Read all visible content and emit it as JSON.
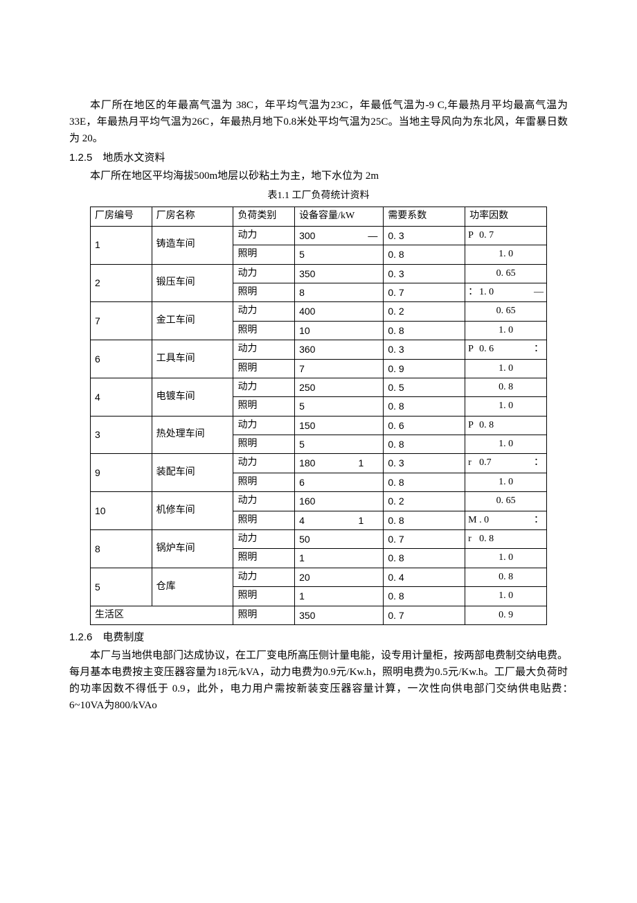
{
  "intro": {
    "p1": "本厂所在地区的年最高气温为 38C，年平均气温为23C，年最低气温为-9 C,年最热月平均最高气温为33E，年最热月平均气温为26C，年最热月地下0.8米处平均气温为25C。当地主导风向为东北风，年雷暴日数为 20。"
  },
  "sec125": {
    "num": "1.2.5",
    "title": "地质水文资料",
    "body": "本厂所在地区平均海拔500m地层以砂粘土为主，地下水位为 2m"
  },
  "table": {
    "title": "表1.1 工厂负荷统计资料",
    "headers": {
      "no": "厂房编号",
      "name": "厂房名称",
      "type": "负荷类别",
      "cap": "设备容量/kW",
      "coef": "需要系数",
      "pf": "功率因数"
    },
    "type_power": "动力",
    "type_light": "照明",
    "groups": [
      {
        "no": "1",
        "name": "铸造车间",
        "p_cap": "300",
        "p_cap_dash": "—",
        "p_coef": "0. 3",
        "p_pf": "0. 7",
        "p_pf_prefix": "P",
        "l_cap": "5",
        "l_coef": "0. 8",
        "l_pf": "1. 0"
      },
      {
        "no": "2",
        "name": "锻压车间",
        "p_cap": "350",
        "p_coef": "0. 3",
        "p_pf": "0. 65",
        "l_cap": "8",
        "l_coef": "0. 7",
        "l_pf": "1. 0",
        "l_pf_prefix": "：",
        "l_pf_suffix": "—"
      },
      {
        "no": "7",
        "name": "金工车间",
        "p_cap": "400",
        "p_coef": "0. 2",
        "p_pf": "0. 65",
        "l_cap": "10",
        "l_coef": "0. 8",
        "l_pf": "1. 0"
      },
      {
        "no": "6",
        "name": "工具车间",
        "p_cap": "360",
        "p_coef": "0. 3",
        "p_pf": "0. 6",
        "p_pf_prefix": "P",
        "p_pf_suffix": "：",
        "l_cap": "7",
        "l_coef": "0. 9",
        "l_pf": "1. 0"
      },
      {
        "no": "4",
        "name": "电镀车间",
        "p_cap": "250",
        "p_coef": "0. 5",
        "p_pf": "0. 8",
        "l_cap": "5",
        "l_coef": "0. 8",
        "l_pf": "1. 0"
      },
      {
        "no": "3",
        "name": "热处理车间",
        "p_cap": "150",
        "p_coef": "0. 6",
        "p_pf": "0. 8",
        "p_pf_prefix": "P",
        "l_cap": "5",
        "l_coef": "0. 8",
        "l_pf": "1. 0"
      },
      {
        "no": "9",
        "name": "装配车间",
        "p_cap": "180",
        "p_cap_bar": "1",
        "p_coef": "0. 3",
        "p_pf": "0.7",
        "p_pf_prefix": "r",
        "p_pf_suffix": "：",
        "l_cap": "6",
        "l_coef": "0. 8",
        "l_pf": "1. 0"
      },
      {
        "no": "10",
        "name": "机修车间",
        "p_cap": "160",
        "p_coef": "0. 2",
        "p_pf": "0. 65",
        "l_cap": "4",
        "l_cap_bar": "1",
        "l_coef": "0. 8",
        "l_pf": ". 0",
        "l_pf_prefix": "M",
        "l_pf_suffix": "："
      },
      {
        "no": "8",
        "name": "锅炉车间",
        "p_cap": "50",
        "p_coef": "0. 7",
        "p_pf": "0. 8",
        "p_pf_prefix": "r",
        "l_cap": "1",
        "l_coef": "0. 8",
        "l_pf": "1. 0"
      },
      {
        "no": "5",
        "name": "仓库",
        "p_cap": "20",
        "p_coef": "0. 4",
        "p_pf": "0. 8",
        "l_cap": "1",
        "l_coef": "0. 8",
        "l_pf": "1. 0"
      }
    ],
    "last_row": {
      "name": "生活区",
      "type": "照明",
      "cap": "350",
      "coef": "0. 7",
      "pf": "0. 9"
    }
  },
  "sec126": {
    "num": "1.2.6",
    "title": "电费制度",
    "body": "本厂与当地供电部门达成协议，在工厂变电所高压侧计量电能，设专用计量柜，按两部电费制交纳电费。每月基本电费按主变压器容量为18元/kVA，动力电费为0.9元/Kw.h，照明电费为0.5元/Kw.h。工厂最大负荷时的功率因数不得低于 0.9，此外，电力用户需按新装变压器容量计算，一次性向供电部门交纳供电贴费：　　　6~10VA为800/kVAo"
  }
}
